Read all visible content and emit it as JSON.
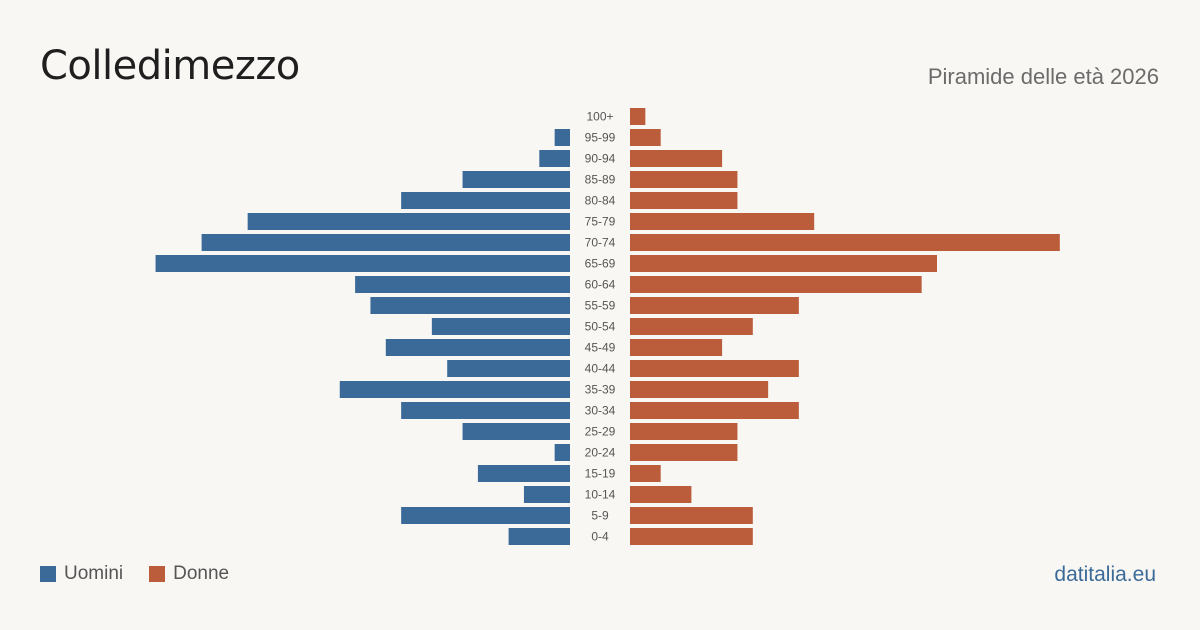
{
  "header": {
    "title": "Colledimezzo",
    "subtitle": "Piramide delle età 2026"
  },
  "legend": {
    "men_label": "Uomini",
    "women_label": "Donne"
  },
  "footer": {
    "site": "datitalia.eu"
  },
  "colors": {
    "men": "#3b6a99",
    "women": "#bb5c3b",
    "background": "#f9f7f3"
  },
  "chart_data": {
    "type": "bar",
    "orientation": "horizontal-pyramid",
    "categories": [
      "100+",
      "95-99",
      "90-94",
      "85-89",
      "80-84",
      "75-79",
      "70-74",
      "65-69",
      "60-64",
      "55-59",
      "50-54",
      "45-49",
      "40-44",
      "35-39",
      "30-34",
      "25-29",
      "20-24",
      "15-19",
      "10-14",
      "5-9",
      "0-4"
    ],
    "series": [
      {
        "name": "Uomini",
        "values": [
          0,
          1,
          2,
          7,
          11,
          21,
          24,
          27,
          14,
          13,
          9,
          12,
          8,
          15,
          11,
          7,
          1,
          6,
          3,
          11,
          4
        ]
      },
      {
        "name": "Donne",
        "values": [
          1,
          2,
          6,
          7,
          7,
          12,
          28,
          20,
          19,
          11,
          8,
          6,
          11,
          9,
          11,
          7,
          7,
          2,
          4,
          8,
          8
        ]
      }
    ],
    "legend_position": "bottom-left",
    "grid": false
  }
}
